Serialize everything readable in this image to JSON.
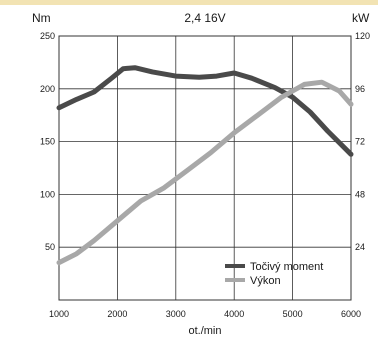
{
  "chart_data": {
    "type": "line",
    "title": "2,4 16V",
    "xlabel": "ot./min",
    "y_left_label": "Nm",
    "y_right_label": "kW",
    "xlim": [
      1000,
      6000
    ],
    "ylim_left": [
      0,
      250
    ],
    "ylim_right": [
      0,
      120
    ],
    "x_ticks": [
      "1000",
      "2000",
      "3000",
      "4000",
      "5000",
      "6000"
    ],
    "y_left_ticks": [
      "50",
      "100",
      "150",
      "200",
      "250"
    ],
    "y_right_ticks": [
      "24",
      "48",
      "72",
      "96",
      "120"
    ],
    "grid": true,
    "legend_position": "bottom-right",
    "series": [
      {
        "name": "Točivý moment",
        "axis": "left",
        "color": "#4a4a4a",
        "x": [
          1000,
          1300,
          1600,
          1900,
          2100,
          2300,
          2600,
          3000,
          3400,
          3700,
          4000,
          4300,
          4700,
          5000,
          5300,
          5600,
          6000
        ],
        "values": [
          182,
          190,
          197,
          210,
          219,
          220,
          216,
          212,
          211,
          212,
          215,
          210,
          201,
          192,
          178,
          160,
          138
        ]
      },
      {
        "name": "Výkon",
        "axis": "right",
        "color": "#a8a8a8",
        "x": [
          1000,
          1300,
          1600,
          2000,
          2400,
          2800,
          3200,
          3600,
          4000,
          4400,
          4800,
          5000,
          5200,
          5500,
          5800,
          6000
        ],
        "values": [
          17,
          21,
          27,
          36,
          45,
          51,
          59,
          67,
          76,
          84,
          92,
          95,
          98,
          99,
          95,
          89
        ]
      }
    ]
  }
}
